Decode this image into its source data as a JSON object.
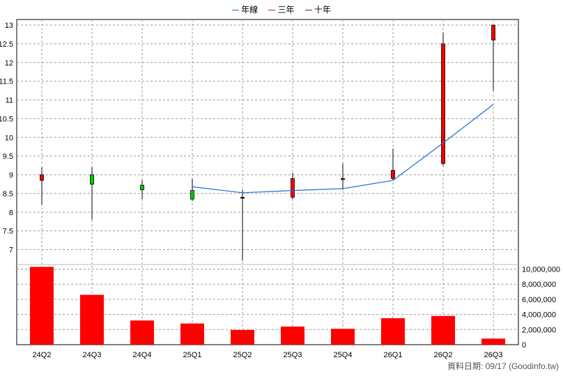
{
  "legend": [
    {
      "label": "年線",
      "color": "#1e6fd6"
    },
    {
      "label": "三年",
      "color": "#dc143c"
    },
    {
      "label": "十年",
      "color": "#8b0a50"
    }
  ],
  "credit": "資料日期: 09/17  (Goodinfo.tw)",
  "chart_data": [
    {
      "type": "candlestick",
      "x_categories": [
        "24Q2",
        "24Q3",
        "24Q4",
        "25Q1",
        "25Q2",
        "25Q3",
        "25Q4",
        "26Q1",
        "26Q2",
        "26Q3"
      ],
      "y_tick_labels": [
        "7",
        "7.5",
        "8",
        "8.5",
        "9",
        "9.5",
        "10",
        "10.5",
        "11",
        "11.5",
        "12",
        "12.5",
        "13"
      ],
      "y_tick_values": [
        7,
        7.5,
        8,
        8.5,
        9,
        9.5,
        10,
        10.5,
        11,
        11.5,
        12,
        12.5,
        13
      ],
      "ylim": [
        6.6,
        13.15
      ],
      "up_color": "#ff0000",
      "down_color": "#00cc00",
      "ohlc": [
        {
          "period": "24Q2",
          "open": 8.85,
          "high": 9.2,
          "low": 8.2,
          "close": 9.0
        },
        {
          "period": "24Q3",
          "open": 9.0,
          "high": 9.2,
          "low": 7.8,
          "close": 8.75
        },
        {
          "period": "24Q4",
          "open": 8.72,
          "high": 8.85,
          "low": 8.35,
          "close": 8.6
        },
        {
          "period": "25Q1",
          "open": 8.58,
          "high": 8.9,
          "low": 8.3,
          "close": 8.35
        },
        {
          "period": "25Q2",
          "open": 8.4,
          "high": 8.6,
          "low": 6.7,
          "close": 8.4
        },
        {
          "period": "25Q3",
          "open": 8.4,
          "high": 9.05,
          "low": 8.35,
          "close": 8.9
        },
        {
          "period": "25Q4",
          "open": 8.9,
          "high": 9.3,
          "low": 8.6,
          "close": 8.9
        },
        {
          "period": "26Q1",
          "open": 8.9,
          "high": 9.7,
          "low": 8.85,
          "close": 9.12
        },
        {
          "period": "26Q2",
          "open": 9.3,
          "high": 12.8,
          "low": 9.25,
          "close": 12.5
        },
        {
          "period": "26Q3",
          "open": 12.6,
          "high": 13.0,
          "low": 11.25,
          "close": 13.0
        }
      ],
      "year_line": {
        "periods": [
          "25Q1",
          "25Q2",
          "25Q3",
          "25Q4",
          "26Q1",
          "26Q2",
          "26Q3"
        ],
        "values": [
          8.68,
          8.52,
          8.58,
          8.63,
          8.85,
          9.85,
          10.88
        ]
      }
    },
    {
      "type": "bar",
      "categories": [
        "24Q2",
        "24Q3",
        "24Q4",
        "25Q1",
        "25Q2",
        "25Q3",
        "25Q4",
        "26Q1",
        "26Q2",
        "26Q3"
      ],
      "values": [
        10300000,
        6600000,
        3200000,
        2800000,
        1950000,
        2400000,
        2100000,
        3500000,
        3800000,
        800000
      ],
      "bar_color": "#ff0000",
      "y_tick_labels": [
        "0",
        "2,000,000",
        "4,000,000",
        "6,000,000",
        "8,000,000",
        "10,000,000"
      ],
      "y_tick_values": [
        0,
        2000000,
        4000000,
        6000000,
        8000000,
        10000000
      ],
      "ylim": [
        0,
        10600000
      ]
    }
  ]
}
